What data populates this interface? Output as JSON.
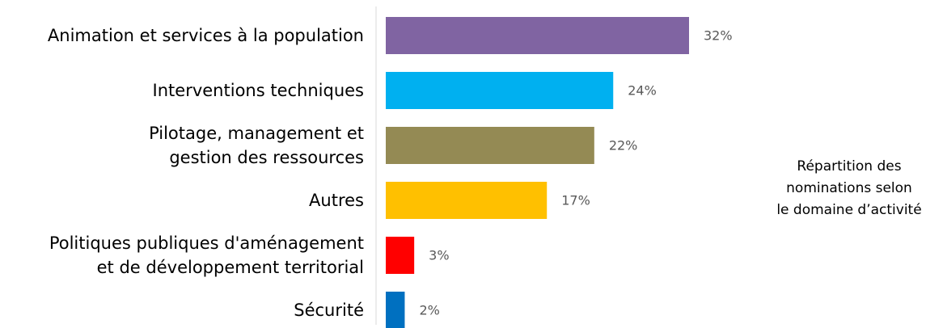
{
  "chart_data": {
    "type": "barh",
    "title": "Répartition des\nnominations selon\nle domaine d’activité",
    "categories": [
      "Animation et services à la population",
      "Interventions techniques",
      "Pilotage, management et\ngestion des ressources",
      "Autres",
      "Politiques publiques d'aménagement\net de développement territorial",
      "Sécurité"
    ],
    "values": [
      32,
      24,
      22,
      17,
      3,
      2
    ],
    "value_labels": [
      "32%",
      "24%",
      "22%",
      "17%",
      "3%",
      "2%"
    ],
    "colors": [
      "#8064a2",
      "#00b0f0",
      "#948a54",
      "#ffc000",
      "#ff0000",
      "#0070c0"
    ]
  }
}
